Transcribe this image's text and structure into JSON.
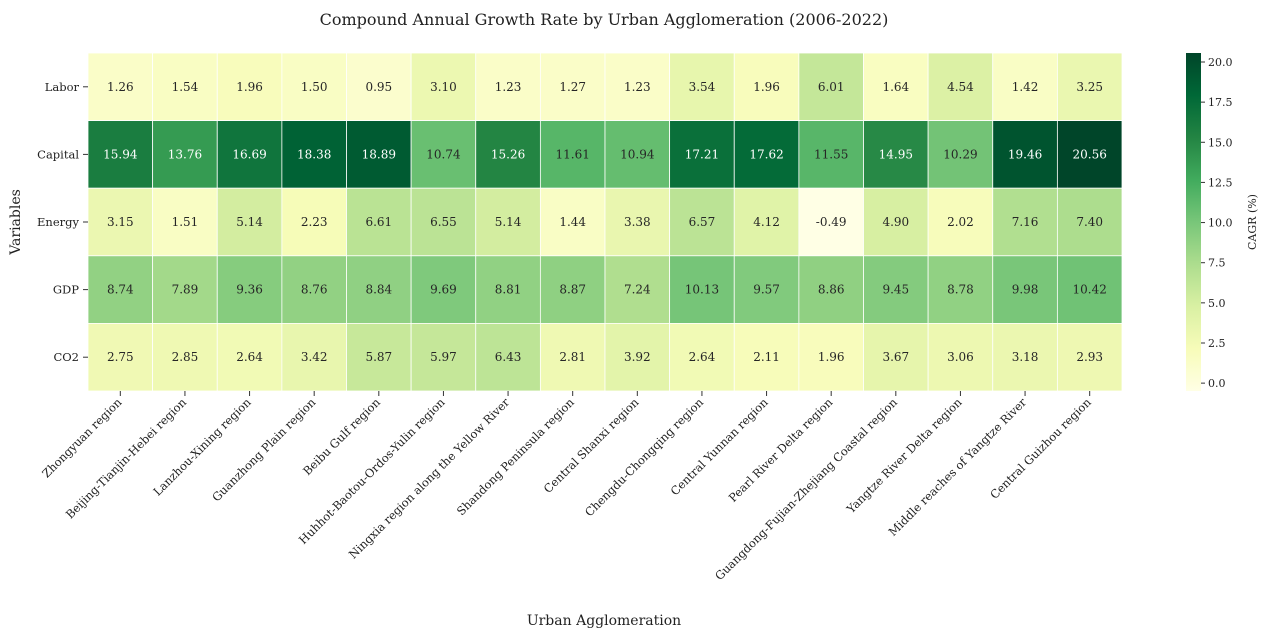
{
  "chart_data": {
    "type": "heatmap",
    "title": "Compound Annual Growth Rate by Urban Agglomeration (2006-2022)",
    "xlabel": "Urban Agglomeration",
    "ylabel": "Variables",
    "colorbar_label": "CAGR (%)",
    "colormap": "YlGn",
    "vmin": -0.49,
    "vmax": 20.56,
    "colorbar_ticks": [
      "0.0",
      "2.5",
      "5.0",
      "7.5",
      "10.0",
      "12.5",
      "15.0",
      "17.5",
      "20.0"
    ],
    "rows": [
      "Labor",
      "Capital",
      "Energy",
      "GDP",
      "CO2"
    ],
    "columns": [
      "Zhongyuan region",
      "Beijing-Tianjin-Hebei region",
      "Lanzhou-Xining region",
      "Guanzhong Plain region",
      "Beibu Gulf region",
      "Huhhot-Baotou-Ordos-Yulin region",
      "Ningxia region along the Yellow River",
      "Shandong Peninsula region",
      "Central Shanxi region",
      "Chengdu-Chongqing region",
      "Central Yunnan region",
      "Pearl River Delta region",
      "Guangdong-Fujian-Zhejiang Coastal region",
      "Yangtze River Delta region",
      "Middle reaches of Yangtze River",
      "Central Guizhou region"
    ],
    "labels": [
      [
        "1.26",
        "1.54",
        "1.96",
        "1.50",
        "0.95",
        "3.10",
        "1.23",
        "1.27",
        "1.23",
        "3.54",
        "1.96",
        "6.01",
        "1.64",
        "4.54",
        "1.42",
        "3.25"
      ],
      [
        "15.94",
        "13.76",
        "16.69",
        "18.38",
        "18.89",
        "10.74",
        "15.26",
        "11.61",
        "10.94",
        "17.21",
        "17.62",
        "11.55",
        "14.95",
        "10.29",
        "19.46",
        "20.56"
      ],
      [
        "3.15",
        "1.51",
        "5.14",
        "2.23",
        "6.61",
        "6.55",
        "5.14",
        "1.44",
        "3.38",
        "6.57",
        "4.12",
        "-0.49",
        "4.90",
        "2.02",
        "7.16",
        "7.40"
      ],
      [
        "8.74",
        "7.89",
        "9.36",
        "8.76",
        "8.84",
        "9.69",
        "8.81",
        "8.87",
        "7.24",
        "10.13",
        "9.57",
        "8.86",
        "9.45",
        "8.78",
        "9.98",
        "10.42"
      ],
      [
        "2.75",
        "2.85",
        "2.64",
        "3.42",
        "5.87",
        "5.97",
        "6.43",
        "2.81",
        "3.92",
        "2.64",
        "2.11",
        "1.96",
        "3.67",
        "3.06",
        "3.18",
        "2.93"
      ]
    ]
  }
}
